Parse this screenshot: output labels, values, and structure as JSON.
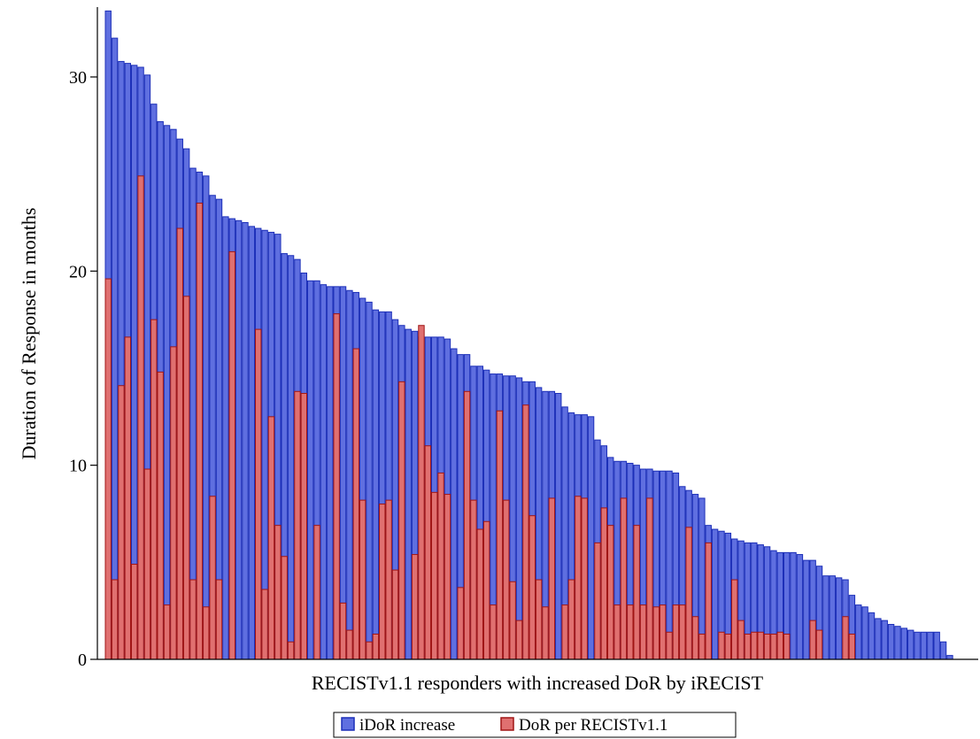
{
  "chart_data": {
    "type": "bar",
    "layout": "overlay",
    "xlabel": "RECISTv1.1 responders with increased DoR by iRECIST",
    "ylabel": "Duration of Response in months",
    "ylim": [
      0,
      33.6
    ],
    "yticks": [
      0,
      10,
      20,
      30
    ],
    "grid": false,
    "legend_position": "bottom-center",
    "series": [
      {
        "name": "iDoR increase",
        "color": "#5f6fe0",
        "edge_color": "#1c2fb8",
        "values": [
          33.4,
          32.0,
          30.8,
          30.7,
          30.6,
          30.5,
          30.1,
          28.6,
          27.7,
          27.5,
          27.3,
          26.8,
          26.3,
          25.3,
          25.1,
          24.9,
          23.9,
          23.7,
          22.8,
          22.7,
          22.6,
          22.5,
          22.3,
          22.2,
          22.1,
          22.0,
          21.9,
          20.9,
          20.8,
          20.6,
          19.9,
          19.5,
          19.5,
          19.3,
          19.2,
          19.2,
          19.2,
          19.0,
          18.9,
          18.6,
          18.4,
          18.0,
          17.9,
          17.9,
          17.5,
          17.2,
          17.0,
          16.9,
          16.6,
          16.6,
          16.6,
          16.6,
          16.5,
          16.0,
          15.7,
          15.7,
          15.1,
          15.1,
          14.9,
          14.7,
          14.7,
          14.6,
          14.6,
          14.5,
          14.3,
          14.3,
          14.0,
          13.8,
          13.8,
          13.7,
          13.0,
          12.7,
          12.6,
          12.6,
          12.5,
          11.3,
          11.0,
          10.4,
          10.2,
          10.2,
          10.1,
          10.0,
          9.8,
          9.8,
          9.7,
          9.7,
          9.7,
          9.6,
          8.9,
          8.7,
          8.5,
          8.3,
          6.9,
          6.7,
          6.6,
          6.5,
          6.2,
          6.1,
          6.0,
          6.0,
          5.9,
          5.8,
          5.6,
          5.5,
          5.5,
          5.5,
          5.4,
          5.1,
          5.1,
          4.8,
          4.3,
          4.3,
          4.2,
          4.1,
          3.3,
          2.8,
          2.7,
          2.4,
          2.1,
          2.0,
          1.8,
          1.7,
          1.6,
          1.5,
          1.4,
          1.4,
          1.4,
          1.4,
          0.9,
          0.2
        ]
      },
      {
        "name": "DoR per RECISTv1.1",
        "color": "#e07070",
        "edge_color": "#a01515",
        "values": [
          19.6,
          4.1,
          14.1,
          16.6,
          4.9,
          24.9,
          9.8,
          17.5,
          14.8,
          2.8,
          16.1,
          22.2,
          18.7,
          4.1,
          23.5,
          2.7,
          8.4,
          4.1,
          0,
          21.0,
          0,
          0,
          0,
          17.0,
          3.6,
          12.5,
          6.9,
          5.3,
          0.9,
          13.8,
          13.7,
          0,
          6.9,
          0,
          0,
          17.8,
          2.9,
          1.5,
          16.0,
          8.2,
          0.9,
          1.3,
          8.0,
          8.2,
          4.6,
          14.3,
          0,
          5.4,
          17.2,
          11.0,
          8.6,
          9.6,
          8.5,
          0,
          3.7,
          13.8,
          8.2,
          6.7,
          7.1,
          2.8,
          12.8,
          8.2,
          4.0,
          2.0,
          13.1,
          7.4,
          4.1,
          2.7,
          8.3,
          0,
          2.8,
          4.1,
          8.4,
          8.3,
          0,
          6.0,
          7.8,
          6.9,
          2.8,
          8.3,
          2.8,
          6.9,
          2.8,
          8.3,
          2.7,
          2.8,
          1.4,
          2.8,
          2.8,
          6.8,
          2.2,
          1.3,
          6.0,
          0,
          1.4,
          1.3,
          4.1,
          2.0,
          1.3,
          1.4,
          1.4,
          1.3,
          1.3,
          1.4,
          1.3,
          0,
          0,
          0,
          2.0,
          1.5,
          0,
          0,
          0,
          2.2,
          1.3,
          0,
          0,
          0,
          0,
          0,
          0,
          0,
          0,
          0,
          0,
          0,
          0,
          0,
          0,
          0
        ]
      }
    ]
  }
}
